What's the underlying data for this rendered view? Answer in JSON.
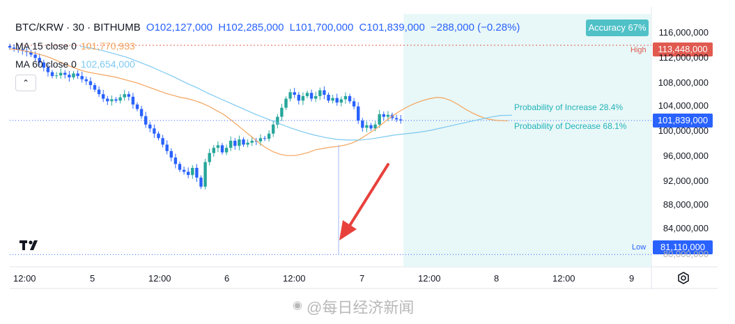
{
  "header": {
    "symbol": "BTC/KRW · 30 · BITHUMB",
    "open": "O102,127,000",
    "high": "H102,285,000",
    "low": "L101,700,000",
    "close": "C101,839,000",
    "change": "−288,000 (−0.28%)"
  },
  "ma15": {
    "label": "MA 15 close 0",
    "value": "101,770,933"
  },
  "ma60": {
    "label": "MA 60 close 0",
    "value": "102,654,000"
  },
  "collapse_glyph": "⌃",
  "accuracy": "Accuracy 67%",
  "prob_increase": "Probability of Increase 28.4%",
  "prob_decrease": "Probability of Decrease 68.1%",
  "high_label": "High",
  "high_value": "113,448,000",
  "low_label": "Low",
  "low_value": "81,110,000",
  "price_tag": "101,839,000",
  "colors": {
    "up": "#26a69a",
    "down": "#2962ff",
    "ma15": "#f4a35a",
    "ma60": "#7cc9f2",
    "high": "#e05a50",
    "low": "#2962ff",
    "forecast": "#e8f7f7",
    "arrow": "#e8413c"
  },
  "watermark": "@每日经济新闻",
  "icons": [
    "tradingview-logo-icon",
    "settings-icon",
    "collapse-icon",
    "red-arrow-icon"
  ],
  "chart_data": {
    "type": "candlestick",
    "x_ticks": [
      "12:00",
      "5",
      "12:00",
      "6",
      "12:00",
      "7",
      "12:00",
      "8",
      "12:00",
      "9"
    ],
    "y_ticks": [
      "116,000,000",
      "112,000,000",
      "108,000,000",
      "104,000,000",
      "100,000,000",
      "96,000,000",
      "92,000,000",
      "88,000,000",
      "84,000,000",
      "80,000,000"
    ],
    "ylim": [
      79200000,
      118300000
    ],
    "close": [
      113.1,
      112.9,
      112.8,
      112.6,
      112.4,
      112.0,
      111.5,
      110.8,
      110.0,
      109.3,
      108.7,
      108.8,
      109.2,
      108.9,
      108.5,
      109.1,
      108.7,
      108.2,
      107.9,
      107.3,
      106.6,
      105.9,
      105.2,
      104.8,
      105.1,
      104.9,
      105.4,
      105.9,
      105.5,
      104.3,
      103.6,
      102.5,
      101.2,
      100.6,
      99.8,
      99.1,
      98.1,
      97.1,
      96.1,
      95.1,
      94.2,
      93.9,
      93.4,
      94.5,
      93.0,
      91.6,
      95.4,
      96.8,
      97.6,
      98.0,
      96.9,
      97.6,
      98.7,
      97.9,
      98.9,
      98.1,
      98.4,
      98.7,
      98.6,
      99.1,
      99.0,
      99.8,
      101.2,
      102.4,
      103.8,
      105.2,
      106.2,
      105.8,
      104.9,
      105.6,
      106.1,
      105.2,
      105.6,
      106.5,
      105.8,
      104.9,
      105.3,
      104.6,
      105.1,
      105.6,
      104.8,
      104.0,
      101.8,
      100.7,
      101.1,
      100.6,
      101.2,
      102.8,
      102.4,
      102.7,
      102.2,
      102.0,
      101.839
    ],
    "ma15": [
      112.9,
      112.8,
      112.6,
      112.4,
      112.1,
      111.8,
      111.4,
      110.9,
      110.4,
      110.0,
      109.6,
      109.3,
      109.1,
      108.9,
      108.7,
      108.5,
      108.2,
      107.9,
      107.6,
      107.2,
      106.8,
      106.4,
      106.0,
      105.7,
      105.4,
      105.2,
      104.9,
      104.5,
      104.0,
      103.4,
      102.8,
      102.0,
      101.1,
      100.2,
      99.3,
      98.4,
      97.6,
      97.0,
      96.6,
      96.4,
      96.4,
      96.6,
      96.9,
      97.3,
      97.5,
      97.7,
      97.8,
      98.0,
      98.3,
      98.8,
      99.5,
      100.2,
      101.0,
      101.9,
      102.7,
      103.4,
      104.0,
      104.5,
      104.9,
      105.2,
      105.4,
      105.3,
      104.9,
      104.3,
      103.6,
      103.0,
      102.5,
      102.1,
      101.9,
      101.8,
      101.77
    ],
    "ma60": [
      113.3,
      113.0,
      112.6,
      112.1,
      111.6,
      110.9,
      110.2,
      109.4,
      108.6,
      107.7,
      106.9,
      106.0,
      105.2,
      104.4,
      103.6,
      102.8,
      102.1,
      101.4,
      100.7,
      100.1,
      99.6,
      99.2,
      98.9,
      98.8,
      98.8,
      99.0,
      99.3,
      99.6,
      99.8,
      100.0,
      100.3,
      100.7,
      101.1,
      101.5,
      101.9,
      102.3,
      102.6,
      102.65
    ],
    "high_line": 113448000,
    "low_line": 81110000,
    "forecast_increase_pct": 28.4,
    "forecast_decrease_pct": 68.1,
    "accuracy_pct": 67
  }
}
